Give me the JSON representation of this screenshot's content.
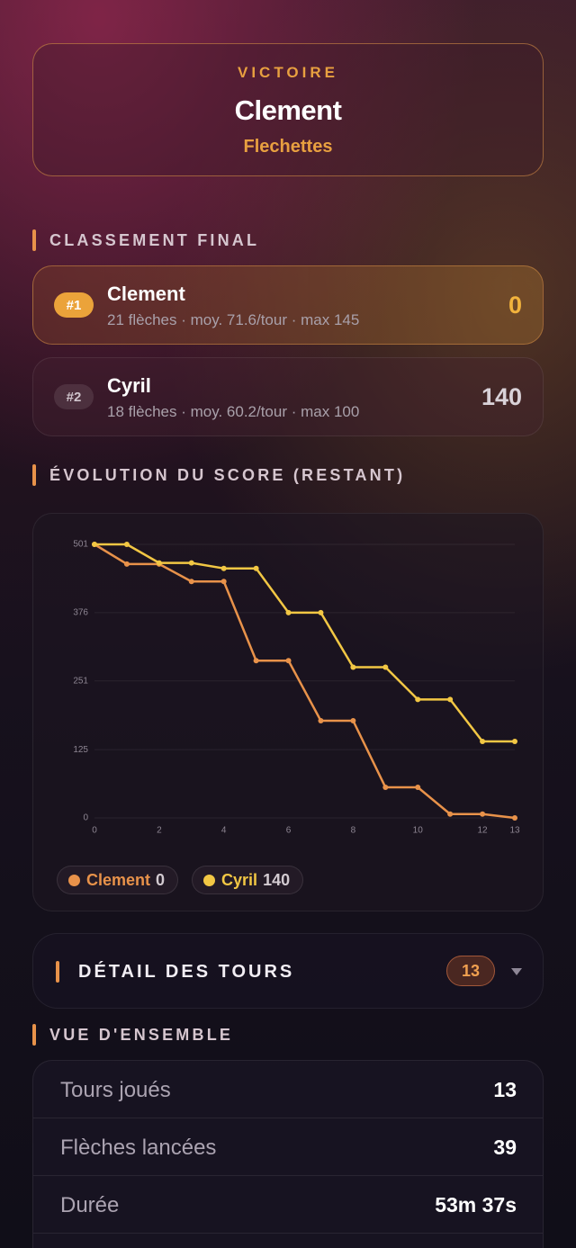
{
  "victory": {
    "label": "VICTOIRE",
    "winner": "Clement",
    "game": "Flechettes"
  },
  "ranking": {
    "title": "CLASSEMENT FINAL",
    "players": [
      {
        "rank": "#1",
        "name": "Clement",
        "stats": "21 flèches · moy. 71.6/tour · max 145",
        "score": 0
      },
      {
        "rank": "#2",
        "name": "Cyril",
        "stats": "18 flèches · moy. 60.2/tour · max 100",
        "score": 140
      }
    ]
  },
  "chart_data": {
    "type": "line",
    "title": "ÉVOLUTION DU SCORE (RESTANT)",
    "x": [
      0,
      1,
      2,
      3,
      4,
      5,
      6,
      7,
      8,
      9,
      10,
      11,
      12,
      13
    ],
    "xlim": [
      0,
      13
    ],
    "xticks": [
      0,
      2,
      4,
      6,
      8,
      10,
      12,
      13
    ],
    "ylim": [
      0,
      501
    ],
    "yticks": [
      0,
      125,
      251,
      376,
      501
    ],
    "grid": true,
    "series": [
      {
        "name": "Clement",
        "color": "#e8924a",
        "values": [
          501,
          465,
          465,
          433,
          433,
          288,
          288,
          178,
          178,
          56,
          56,
          7,
          7,
          0
        ]
      },
      {
        "name": "Cyril",
        "color": "#f2c744",
        "values": [
          501,
          501,
          467,
          467,
          457,
          457,
          376,
          376,
          276,
          276,
          217,
          217,
          140,
          140
        ]
      }
    ]
  },
  "details": {
    "title": "DÉTAIL DES TOURS",
    "count": 13
  },
  "overview": {
    "title": "VUE D'ENSEMBLE",
    "rows": [
      [
        "Tours joués",
        13
      ],
      [
        "Flèches lancées",
        39
      ],
      [
        "Durée",
        "53m 37s"
      ]
    ]
  }
}
